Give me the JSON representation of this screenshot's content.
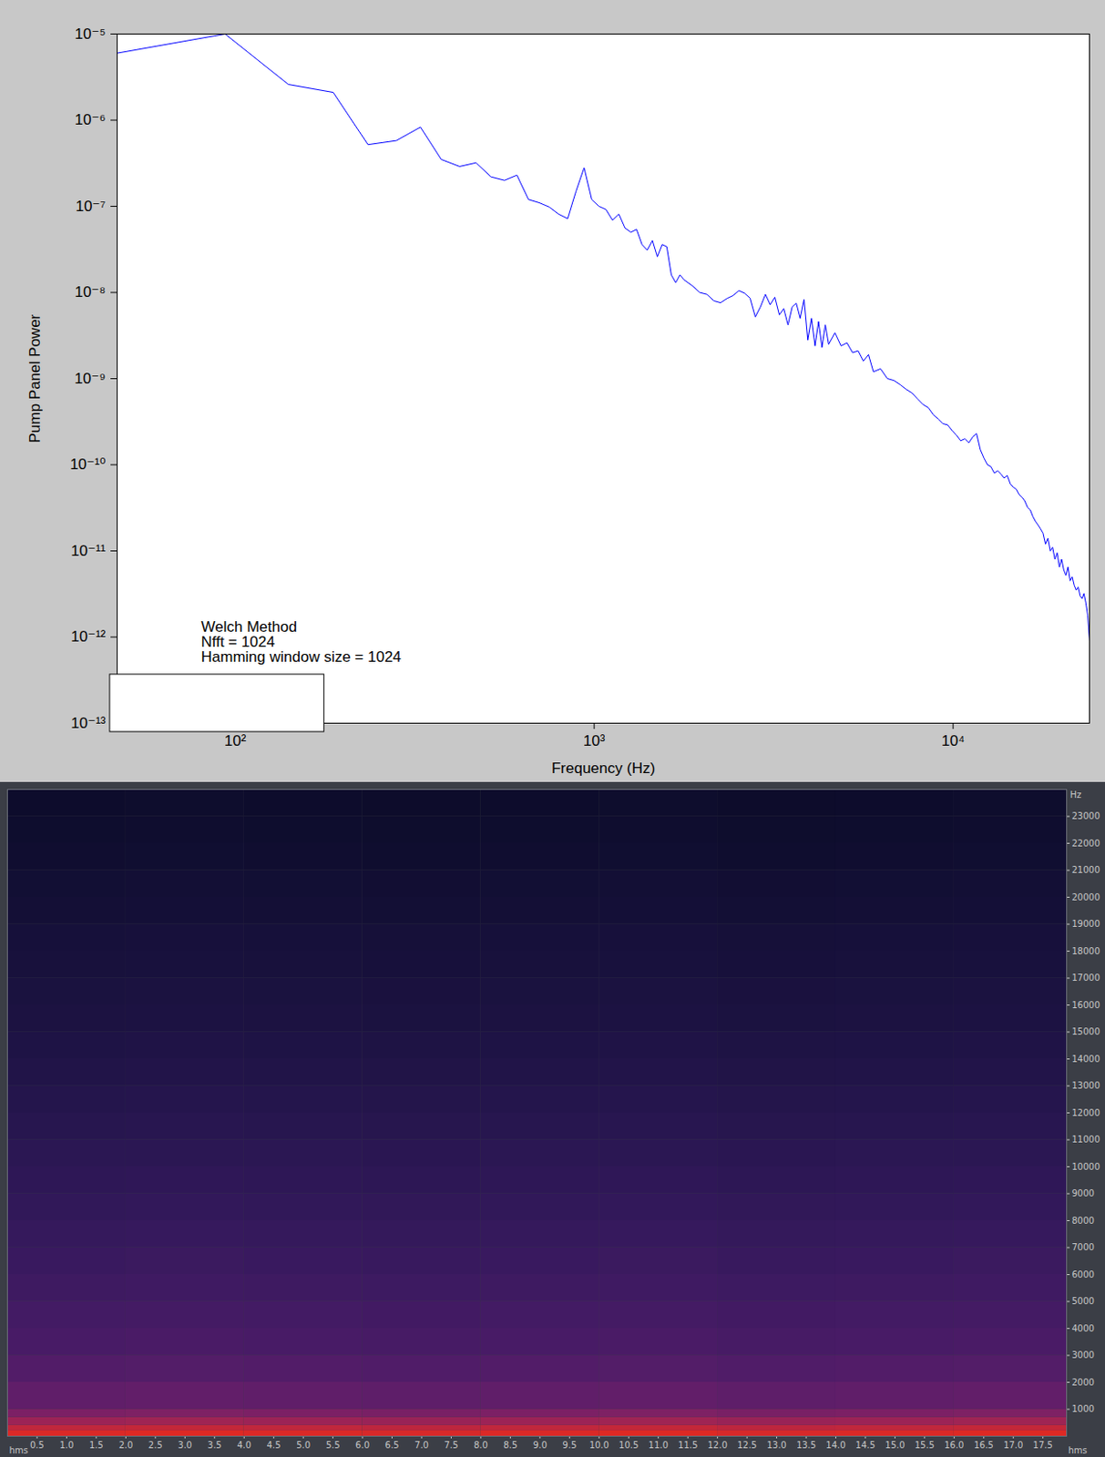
{
  "chart_data": [
    {
      "type": "line",
      "x_label": "Frequency (Hz)",
      "y_label": "Pump Panel Power",
      "annotations": [
        "Welch Method",
        "Nfft = 1024",
        "Hamming window size = 1024"
      ],
      "log": true,
      "grid": false,
      "color": "#0000ff",
      "xlim": [
        46.875,
        24000
      ],
      "ylim": [
        1e-13,
        1e-05
      ],
      "xticks": [
        {
          "value": 100,
          "label": "10²"
        },
        {
          "value": 1000,
          "label": "10³"
        },
        {
          "value": 10000,
          "label": "10⁴"
        }
      ],
      "yticks": [
        {
          "value": 1e-13,
          "label": "10⁻¹³"
        },
        {
          "value": 1e-12,
          "label": "10⁻¹²"
        },
        {
          "value": 1e-11,
          "label": "10⁻¹¹"
        },
        {
          "value": 1e-10,
          "label": "10⁻¹⁰"
        },
        {
          "value": 1e-09,
          "label": "10⁻⁹"
        },
        {
          "value": 1e-08,
          "label": "10⁻⁸"
        },
        {
          "value": 1e-07,
          "label": "10⁻⁷"
        },
        {
          "value": 1e-06,
          "label": "10⁻⁶"
        },
        {
          "value": 1e-05,
          "label": "10⁻⁵"
        }
      ],
      "x": [
        46.875,
        93.75,
        140.625,
        187.5,
        234.375,
        281.25,
        328.125,
        375,
        421.875,
        468.75,
        515.625,
        562.5,
        609.375,
        656.25,
        703.125,
        750,
        796.875,
        843.75,
        890.625,
        937.5,
        984.375,
        1031.25,
        1078.125,
        1125,
        1171.875,
        1218.75,
        1265.625,
        1312.5,
        1359.375,
        1406.25,
        1453.125,
        1500,
        1546.875,
        1593.75,
        1640.625,
        1687.5,
        1734.375,
        1781.25,
        1875,
        1968.75,
        2062.5,
        2156.25,
        2250,
        2343.75,
        2437.5,
        2531.25,
        2625,
        2718.75,
        2812.5,
        2906.25,
        3000,
        3093.75,
        3187.5,
        3281.25,
        3375,
        3468.75,
        3562.5,
        3656.25,
        3750,
        3843.75,
        3937.5,
        4031.25,
        4125,
        4218.75,
        4312.5,
        4406.25,
        4500,
        4687.5,
        4875,
        5062.5,
        5250,
        5437.5,
        5625,
        5812.5,
        6000,
        6281.25,
        6562.5,
        6843.75,
        7125,
        7406.25,
        7687.5,
        7968.75,
        8250,
        8531.25,
        8812.5,
        9093.75,
        9375,
        9656.25,
        9937.5,
        10218.75,
        10500,
        10781.25,
        11062.5,
        11343.75,
        11625,
        11906.25,
        12187.5,
        12468.75,
        12750,
        13031.25,
        13312.5,
        13593.75,
        13875,
        14156.25,
        14437.5,
        14718.75,
        15000,
        15281.25,
        15562.5,
        15843.75,
        16125,
        16406.25,
        16687.5,
        16968.75,
        17250,
        17531.25,
        17812.5,
        18093.75,
        18375,
        18656.25,
        18937.5,
        19218.75,
        19500,
        19781.25,
        20062.5,
        20343.75,
        20625,
        20906.25,
        21187.5,
        21468.75,
        21750,
        22031.25,
        22312.5,
        22593.75,
        22875,
        23156.25,
        23437.5,
        23718.75,
        24000
      ],
      "values": [
        6e-06,
        1e-05,
        2.6e-06,
        2.1e-06,
        5.2e-07,
        5.8e-07,
        8.3e-07,
        3.5e-07,
        2.9e-07,
        3.2e-07,
        2.2e-07,
        2e-07,
        2.3e-07,
        1.2e-07,
        1.1e-07,
        9.8e-08,
        8.1e-08,
        7.2e-08,
        1.5e-07,
        2.8e-07,
        1.2e-07,
        1e-07,
        9.2e-08,
        6.9e-08,
        8.1e-08,
        5.6e-08,
        5e-08,
        5.4e-08,
        3.6e-08,
        3.1e-08,
        4e-08,
        2.6e-08,
        3.6e-08,
        3.4e-08,
        1.6e-08,
        1.3e-08,
        1.6e-08,
        1.4e-08,
        1.2e-08,
        1e-08,
        9.5e-09,
        8e-09,
        7.6e-09,
        8.5e-09,
        9.2e-09,
        1.05e-08,
        9.8e-09,
        8.6e-09,
        5.2e-09,
        6.8e-09,
        9.5e-09,
        7.2e-09,
        8.8e-09,
        5.5e-09,
        6.5e-09,
        4.2e-09,
        6.8e-09,
        7.5e-09,
        5e-09,
        8.3e-09,
        2.8e-09,
        5e-09,
        2.4e-09,
        4.6e-09,
        2.3e-09,
        4.2e-09,
        2.5e-09,
        3.4e-09,
        2.4e-09,
        2.6e-09,
        2e-09,
        2.1e-09,
        1.6e-09,
        1.9e-09,
        1.2e-09,
        1.3e-09,
        1e-09,
        9.5e-10,
        8.5e-10,
        7.5e-10,
        6.8e-10,
        5.8e-10,
        5e-10,
        4.6e-10,
        3.8e-10,
        3.4e-10,
        3e-10,
        2.9e-10,
        2.5e-10,
        2.2e-10,
        1.9e-10,
        2e-10,
        1.8e-10,
        2.1e-10,
        2.3e-10,
        1.5e-10,
        1.2e-10,
        1e-10,
        9.5e-11,
        8e-11,
        8.5e-11,
        7.8e-11,
        7e-11,
        7.5e-11,
        6e-11,
        5.5e-11,
        5.2e-11,
        4.5e-11,
        4.2e-11,
        3.8e-11,
        3.2e-11,
        3e-11,
        2.5e-11,
        2.2e-11,
        2e-11,
        1.8e-11,
        1.6e-11,
        1.2e-11,
        1.4e-11,
        1e-11,
        1.1e-11,
        8e-12,
        9.5e-12,
        6.5e-12,
        8e-12,
        6e-12,
        5.2e-12,
        6.5e-12,
        4.5e-12,
        5e-12,
        4e-12,
        3.5e-12,
        3.8e-12,
        3e-12,
        2.8e-12,
        3.2e-12,
        2.5e-12,
        1.8e-12,
        9e-13
      ]
    },
    {
      "type": "heatmap",
      "x_label": "hms",
      "y_label": "Hz",
      "xlim": [
        0,
        17.9
      ],
      "ylim": [
        0,
        24000
      ],
      "xticks": [
        0.5,
        {
          "value": 1,
          "label": "1.0"
        },
        1.5,
        {
          "value": 2,
          "label": "2.0"
        },
        2.5,
        {
          "value": 3,
          "label": "3.0"
        },
        3.5,
        {
          "value": 4,
          "label": "4.0"
        },
        4.5,
        {
          "value": 5,
          "label": "5.0"
        },
        5.5,
        {
          "value": 6,
          "label": "6.0"
        },
        6.5,
        {
          "value": 7,
          "label": "7.0"
        },
        7.5,
        {
          "value": 8,
          "label": "8.0"
        },
        8.5,
        {
          "value": 9,
          "label": "9.0"
        },
        9.5,
        {
          "value": 10,
          "label": "10.0"
        },
        10.5,
        {
          "value": 11,
          "label": "11.0"
        },
        11.5,
        {
          "value": 12,
          "label": "12.0"
        },
        12.5,
        {
          "value": 13,
          "label": "13.0"
        },
        13.5,
        {
          "value": 14,
          "label": "14.0"
        },
        14.5,
        {
          "value": 15,
          "label": "15.0"
        },
        15.5,
        {
          "value": 16,
          "label": "16.0"
        },
        16.5,
        {
          "value": 17,
          "label": "17.0"
        },
        17.5
      ],
      "yticks": [
        1000,
        2000,
        3000,
        4000,
        5000,
        6000,
        7000,
        8000,
        9000,
        10000,
        11000,
        12000,
        13000,
        14000,
        15000,
        16000,
        17000,
        18000,
        19000,
        20000,
        21000,
        22000,
        23000
      ],
      "x_bins": [
        0,
        2,
        4,
        6,
        8,
        10,
        12,
        14,
        16,
        17.9
      ],
      "y_bins": [
        0,
        200,
        400,
        700,
        1000,
        2000,
        3000,
        4000,
        5000,
        6000,
        7000,
        8000,
        9000,
        10000,
        11000,
        12000,
        13000,
        14000,
        15000,
        16000,
        17000,
        18000,
        19000,
        20000,
        21000,
        22000,
        23000,
        24000
      ],
      "zlim": [
        -70,
        0
      ],
      "cells": [
        [
          -2,
          -1.5,
          -2,
          -2.5,
          -2,
          -1.5,
          -2.5,
          -2,
          -1.5
        ],
        [
          -6,
          -5.5,
          -6,
          -6.5,
          -6,
          -5.5,
          -6.5,
          -6,
          -5.5
        ],
        [
          -12,
          -11.5,
          -12,
          -12.5,
          -12,
          -11.5,
          -12.5,
          -12,
          -11.5
        ],
        [
          -18,
          -17.5,
          -18,
          -18.5,
          -18,
          -17.5,
          -18.5,
          -18,
          -17.5
        ],
        [
          -24,
          -23.5,
          -24,
          -24.5,
          -24,
          -23.5,
          -24.5,
          -24,
          -23.5
        ],
        [
          -28,
          -27.5,
          -28,
          -28.5,
          -28,
          -27.5,
          -28.5,
          -28,
          -27.5
        ],
        [
          -31,
          -30.5,
          -31,
          -31.5,
          -31,
          -30.5,
          -31.5,
          -31,
          -30.5
        ],
        [
          -33,
          -32.5,
          -33,
          -33.5,
          -33,
          -32.5,
          -33.5,
          -33,
          -32.5
        ],
        [
          -35,
          -34.5,
          -35,
          -35.5,
          -35,
          -34.5,
          -35.5,
          -35,
          -34.5
        ],
        [
          -37,
          -36.5,
          -37,
          -37.5,
          -37,
          -36.5,
          -37.5,
          -37,
          -36.5
        ],
        [
          -39,
          -38.5,
          -39,
          -39.5,
          -39,
          -38.5,
          -39.5,
          -39,
          -38.5
        ],
        [
          -41,
          -40.5,
          -41,
          -41.5,
          -41,
          -40.5,
          -41.5,
          -41,
          -40.5
        ],
        [
          -43,
          -42.5,
          -43,
          -43.5,
          -43,
          -42.5,
          -43.5,
          -43,
          -42.5
        ],
        [
          -45,
          -44.5,
          -45,
          -45.5,
          -45,
          -44.5,
          -45.5,
          -45,
          -44.5
        ],
        [
          -47,
          -46.5,
          -47,
          -47.5,
          -47,
          -46.5,
          -47.5,
          -47,
          -46.5
        ],
        [
          -49,
          -48.5,
          -49,
          -49.5,
          -49,
          -48.5,
          -49.5,
          -49,
          -48.5
        ],
        [
          -51,
          -50.5,
          -51,
          -51.5,
          -51,
          -50.5,
          -51.5,
          -51,
          -50.5
        ],
        [
          -53,
          -52.5,
          -53,
          -53.5,
          -53,
          -52.5,
          -53.5,
          -53,
          -52.5
        ],
        [
          -55,
          -54.5,
          -55,
          -55.5,
          -55,
          -54.5,
          -55.5,
          -55,
          -54.5
        ],
        [
          -56,
          -55.5,
          -56,
          -56.5,
          -56,
          -55.5,
          -56.5,
          -56,
          -55.5
        ],
        [
          -58,
          -57.5,
          -58,
          -58.5,
          -58,
          -57.5,
          -58.5,
          -58,
          -57.5
        ],
        [
          -59,
          -58.5,
          -59,
          -59.5,
          -59,
          -58.5,
          -59.5,
          -59,
          -58.5
        ],
        [
          -61,
          -60.5,
          -61,
          -61.5,
          -61,
          -60.5,
          -61.5,
          -61,
          -60.5
        ],
        [
          -62,
          -61.5,
          -62,
          -62.5,
          -62,
          -61.5,
          -62.5,
          -62,
          -61.5
        ],
        [
          -64,
          -63.5,
          -64,
          -64.5,
          -64,
          -63.5,
          -64.5,
          -64,
          -63.5
        ],
        [
          -65,
          -64.5,
          -65,
          -65.5,
          -65,
          -64.5,
          -65.5,
          -65,
          -64.5
        ],
        [
          -66,
          -65.5,
          -66,
          -66.5,
          -66,
          -65.5,
          -66.5,
          -66,
          -65.5
        ]
      ]
    }
  ]
}
